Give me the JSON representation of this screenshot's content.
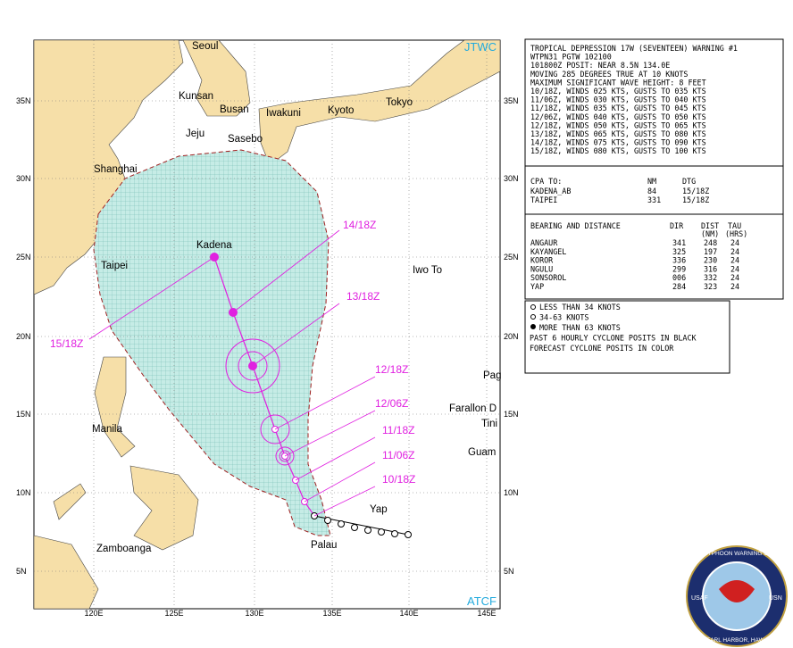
{
  "map": {
    "corner_top": "JTWC",
    "corner_bottom": "ATCF",
    "lon_ticks": [
      "120E",
      "125E",
      "130E",
      "135E",
      "140E",
      "145E"
    ],
    "lat_ticks": [
      "35N",
      "30N",
      "25N",
      "20N",
      "15N",
      "10N",
      "5N"
    ],
    "places": [
      "Seoul",
      "Kunsan",
      "Busan",
      "Jeju",
      "Sasebo",
      "Iwakuni",
      "Kyoto",
      "Tokyo",
      "Shanghai",
      "Kadena",
      "Taipei",
      "Iwo To",
      "Manila",
      "Farallon D",
      "Tini",
      "Pag",
      "Guam",
      "Yap",
      "Palau",
      "Zamboanga"
    ],
    "track_labels": [
      "10/18Z",
      "11/06Z",
      "11/18Z",
      "12/06Z",
      "12/18Z",
      "13/18Z",
      "14/18Z",
      "15/18Z"
    ]
  },
  "warning": {
    "lines": [
      "TROPICAL DEPRESSION 17W (SEVENTEEN) WARNING #1",
      "WTPN31 PGTW 102100",
      "101800Z POSIT: NEAR 8.5N 134.0E",
      "MOVING 285 DEGREES TRUE AT 10 KNOTS",
      "MAXIMUM SIGNIFICANT WAVE HEIGHT: 8 FEET",
      "10/18Z, WINDS 025 KTS, GUSTS TO 035 KTS",
      "11/06Z, WINDS 030 KTS, GUSTS TO 040 KTS",
      "11/18Z, WINDS 035 KTS, GUSTS TO 045 KTS",
      "12/06Z, WINDS 040 KTS, GUSTS TO 050 KTS",
      "12/18Z, WINDS 050 KTS, GUSTS TO 065 KTS",
      "13/18Z, WINDS 065 KTS, GUSTS TO 080 KTS",
      "14/18Z, WINDS 075 KTS, GUSTS TO 090 KTS",
      "15/18Z, WINDS 080 KTS, GUSTS TO 100 KTS"
    ],
    "cpa_header": [
      "CPA TO:",
      "NM",
      "DTG"
    ],
    "cpa_rows": [
      [
        "KADENA_AB",
        "84",
        "15/18Z"
      ],
      [
        "TAIPEI",
        "331",
        "15/18Z"
      ]
    ],
    "bearing_header": [
      "BEARING AND DISTANCE",
      "DIR",
      "DIST",
      "TAU"
    ],
    "bearing_units": [
      "(NM)",
      "(HRS)"
    ],
    "bearing_rows": [
      [
        "ANGAUR",
        "341",
        "248",
        "24"
      ],
      [
        "KAYANGEL",
        "325",
        "197",
        "24"
      ],
      [
        "KOROR",
        "336",
        "230",
        "24"
      ],
      [
        "NGULU",
        "299",
        "316",
        "24"
      ],
      [
        "SONSOROL",
        "006",
        "332",
        "24"
      ],
      [
        "YAP",
        "284",
        "323",
        "24"
      ]
    ]
  },
  "legend": {
    "lines": [
      "LESS THAN 34 KNOTS",
      "34-63 KNOTS",
      "MORE THAN 63 KNOTS",
      "PAST 6 HOURLY CYCLONE POSITS IN BLACK",
      "FORECAST CYCLONE POSITS IN COLOR"
    ]
  },
  "logo": {
    "top": "JOINT TYPHOON WARNING CENTER",
    "bottom": "PEARL HARBOR, HAWAII",
    "left": "USAF",
    "right": "USN"
  }
}
